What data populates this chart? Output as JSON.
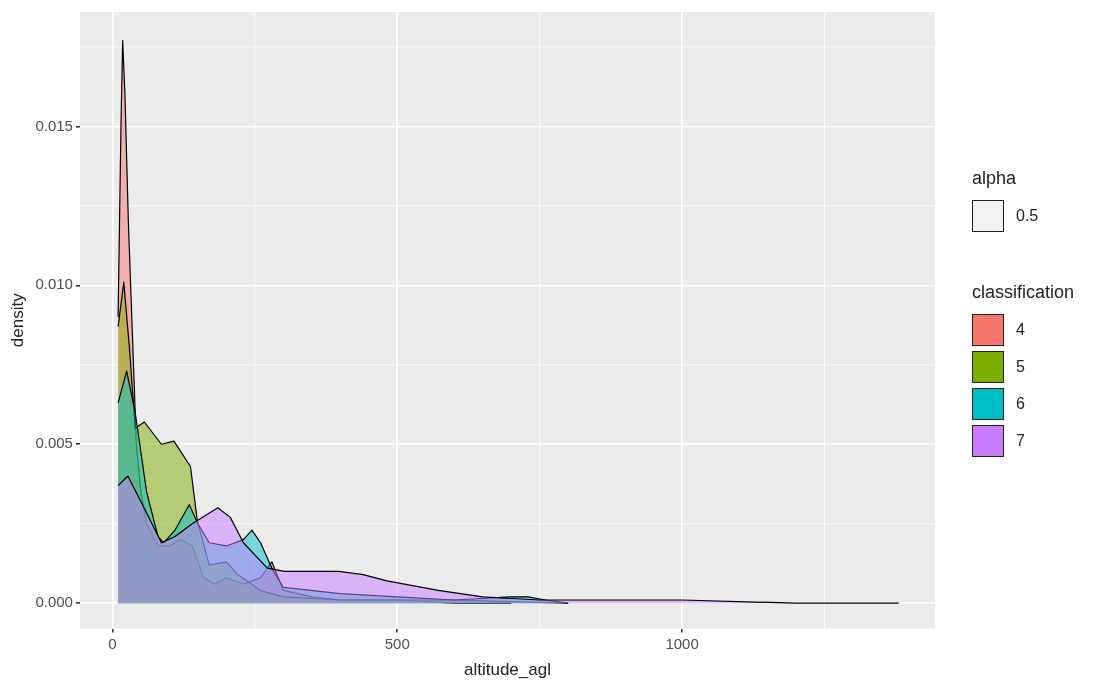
{
  "chart_data": {
    "type": "area",
    "xlabel": "altitude_agl",
    "ylabel": "density",
    "legend_title": "classification",
    "legend": "right",
    "grid": true,
    "annotations": [
      "alpha",
      "0.5"
    ],
    "xlim": [
      -57,
      1444
    ],
    "ylim": [
      -0.0008,
      0.0186
    ],
    "xticks": [
      0,
      500,
      1000
    ],
    "yticks": [
      {
        "value": 0,
        "label": "0.000"
      },
      {
        "value": 0.005,
        "label": "0.005"
      },
      {
        "value": 0.01,
        "label": "0.010"
      },
      {
        "value": 0.015,
        "label": "0.015"
      }
    ],
    "series": [
      {
        "name": "4",
        "color": "#f8766d",
        "x": [
          10,
          15,
          18,
          22,
          28,
          35,
          42,
          50,
          60,
          80,
          100,
          120,
          140,
          160,
          180,
          200,
          230,
          260,
          280,
          300,
          350,
          400,
          500,
          600,
          700
        ],
        "values": [
          0.009,
          0.015,
          0.0177,
          0.016,
          0.012,
          0.0085,
          0.005,
          0.0035,
          0.0025,
          0.0018,
          0.0018,
          0.002,
          0.0018,
          0.0008,
          0.0006,
          0.0008,
          0.0006,
          0.0008,
          0.0013,
          0.0004,
          0.0002,
          0.0001,
          0.0001,
          0,
          0
        ]
      },
      {
        "name": "5",
        "color": "#7cae00",
        "x": [
          10,
          20,
          30,
          40,
          56,
          86,
          108,
          137,
          149,
          170,
          200,
          220,
          260,
          300,
          400,
          600,
          800
        ],
        "values": [
          0.0087,
          0.0101,
          0.008,
          0.0055,
          0.0057,
          0.005,
          0.0051,
          0.0043,
          0.0026,
          0.0012,
          0.0013,
          0.0009,
          0.0004,
          0.0002,
          0.0001,
          0.0001,
          0
        ]
      },
      {
        "name": "6",
        "color": "#00bfc4",
        "x": [
          10,
          25,
          40,
          60,
          80,
          90,
          110,
          135,
          150,
          170,
          200,
          230,
          245,
          260,
          280,
          300,
          400,
          500,
          600,
          700,
          730,
          760,
          800
        ],
        "values": [
          0.0063,
          0.0073,
          0.006,
          0.0035,
          0.0021,
          0.0019,
          0.0023,
          0.0031,
          0.0025,
          0.0019,
          0.0018,
          0.002,
          0.0023,
          0.0019,
          0.0011,
          0.0005,
          0.0003,
          0.0002,
          0.0001,
          0.0002,
          0.0002,
          0.0001,
          0
        ]
      },
      {
        "name": "7",
        "color": "#c77cff",
        "x": [
          10,
          27,
          50,
          86,
          110,
          140,
          185,
          207,
          230,
          272,
          302,
          397,
          440,
          482,
          572,
          650,
          750,
          850,
          1000,
          1200,
          1380
        ],
        "values": [
          0.0037,
          0.004,
          0.0032,
          0.0019,
          0.0021,
          0.0025,
          0.003,
          0.0027,
          0.0019,
          0.0011,
          0.001,
          0.001,
          0.0009,
          0.0007,
          0.0004,
          0.0002,
          0.0001,
          0.0001,
          0.0001,
          0,
          0
        ]
      }
    ]
  }
}
